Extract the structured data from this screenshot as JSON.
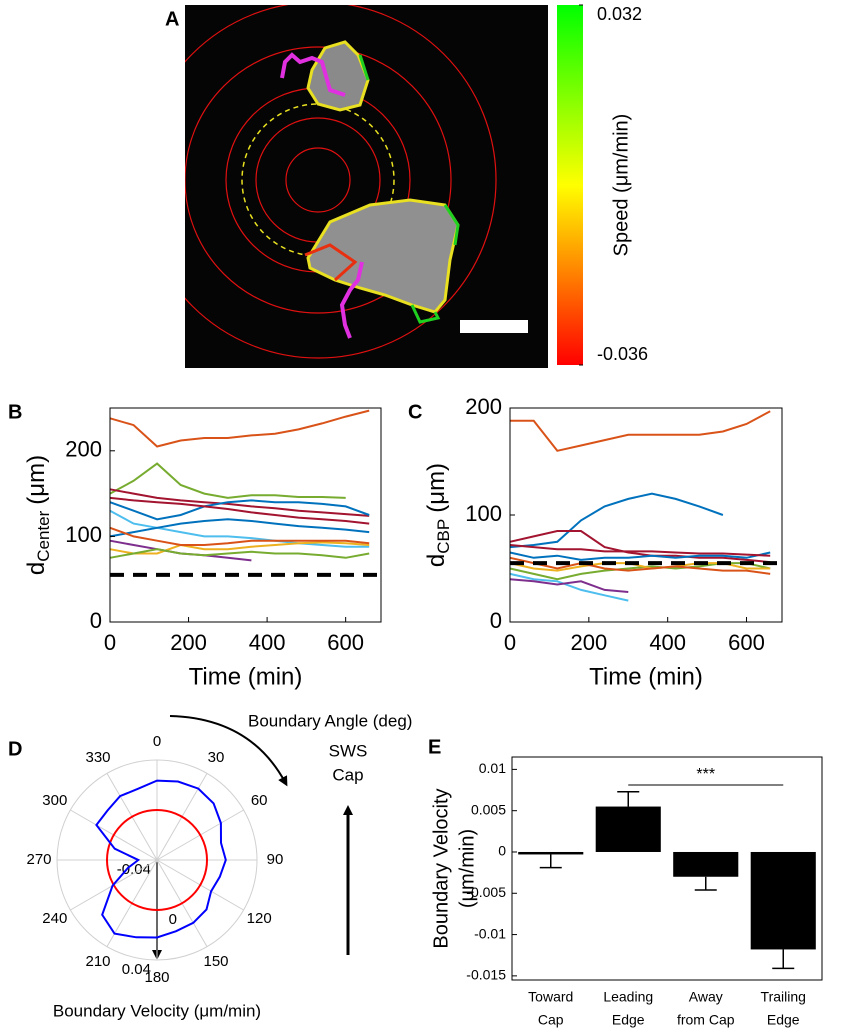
{
  "chart_data": [
    {
      "type": "image",
      "label": "A",
      "colorbar": {
        "label": "Speed (μm/min)",
        "lim": [
          -0.036,
          0.032
        ],
        "ticks": [
          -0.036,
          0.032
        ],
        "colors": [
          "#ff0000",
          "#ffff00",
          "#00ff00"
        ]
      }
    },
    {
      "type": "line",
      "label": "B",
      "xlabel": "Time (min)",
      "ylabel": "d",
      "ylabel_sub": "Center",
      "ylabel_unit": "(μm)",
      "x": [
        0,
        60,
        120,
        180,
        240,
        300,
        360,
        420,
        480,
        540,
        600,
        660
      ],
      "xlim": [
        0,
        690
      ],
      "xticks": [
        0,
        200,
        400,
        600
      ],
      "ylim": [
        0,
        250
      ],
      "yticks": [
        0,
        100,
        200
      ],
      "hline": 55,
      "series": [
        {
          "color": "#d95319",
          "values": [
            238,
            230,
            205,
            212,
            215,
            215,
            218,
            220,
            225,
            232,
            240,
            247
          ]
        },
        {
          "color": "#77ac30",
          "values": [
            150,
            165,
            185,
            160,
            150,
            145,
            148,
            148,
            146,
            146,
            145,
            null
          ]
        },
        {
          "color": "#a2142f",
          "values": [
            155,
            150,
            145,
            142,
            140,
            138,
            135,
            133,
            130,
            128,
            126,
            124
          ]
        },
        {
          "color": "#0072bd",
          "values": [
            140,
            130,
            120,
            125,
            135,
            140,
            142,
            140,
            140,
            138,
            135,
            125
          ]
        },
        {
          "color": "#4dbeee",
          "values": [
            130,
            115,
            110,
            105,
            100,
            100,
            98,
            95,
            92,
            90,
            88,
            88
          ]
        },
        {
          "color": "#7e2f8e",
          "values": [
            95,
            90,
            85,
            80,
            78,
            75,
            72,
            null,
            null,
            null,
            null,
            null
          ]
        },
        {
          "color": "#edb120",
          "values": [
            85,
            80,
            80,
            90,
            85,
            85,
            88,
            90,
            92,
            93,
            92,
            90
          ]
        },
        {
          "color": "#0072bd",
          "values": [
            100,
            105,
            110,
            115,
            118,
            120,
            118,
            115,
            112,
            110,
            108,
            105
          ]
        },
        {
          "color": "#d95319",
          "values": [
            110,
            100,
            95,
            90,
            90,
            92,
            95,
            95,
            95,
            95,
            95,
            92
          ]
        },
        {
          "color": "#77ac30",
          "values": [
            75,
            80,
            85,
            80,
            78,
            80,
            82,
            80,
            80,
            78,
            75,
            80
          ]
        },
        {
          "color": "#a2142f",
          "values": [
            145,
            142,
            140,
            138,
            135,
            132,
            128,
            125,
            122,
            120,
            118,
            115
          ]
        }
      ]
    },
    {
      "type": "line",
      "label": "C",
      "xlabel": "Time (min)",
      "ylabel": "d",
      "ylabel_sub": "CBP",
      "ylabel_unit": "(μm)",
      "x": [
        0,
        60,
        120,
        180,
        240,
        300,
        360,
        420,
        480,
        540,
        600,
        660
      ],
      "xlim": [
        0,
        690
      ],
      "xticks": [
        0,
        200,
        400,
        600
      ],
      "ylim": [
        0,
        200
      ],
      "yticks": [
        0,
        100,
        200
      ],
      "hline": 55,
      "series": [
        {
          "color": "#d95319",
          "values": [
            188,
            188,
            160,
            165,
            170,
            175,
            175,
            175,
            175,
            178,
            185,
            197
          ]
        },
        {
          "color": "#0072bd",
          "values": [
            70,
            72,
            75,
            95,
            108,
            115,
            120,
            115,
            108,
            100,
            null,
            null
          ]
        },
        {
          "color": "#a2142f",
          "values": [
            75,
            80,
            85,
            85,
            70,
            65,
            62,
            62,
            60,
            60,
            58,
            56
          ]
        },
        {
          "color": "#4dbeee",
          "values": [
            45,
            40,
            38,
            30,
            25,
            20,
            null,
            null,
            null,
            null,
            null,
            null
          ]
        },
        {
          "color": "#77ac30",
          "values": [
            50,
            45,
            40,
            45,
            48,
            50,
            52,
            50,
            52,
            55,
            55,
            50
          ]
        },
        {
          "color": "#edb120",
          "values": [
            55,
            50,
            48,
            52,
            55,
            55,
            50,
            52,
            55,
            55,
            50,
            50
          ]
        },
        {
          "color": "#7e2f8e",
          "values": [
            40,
            38,
            35,
            38,
            30,
            28,
            null,
            null,
            null,
            null,
            null,
            null
          ]
        },
        {
          "color": "#0072bd",
          "values": [
            65,
            60,
            62,
            58,
            60,
            60,
            62,
            60,
            62,
            62,
            60,
            65
          ]
        },
        {
          "color": "#d95319",
          "values": [
            60,
            55,
            50,
            55,
            50,
            48,
            50,
            52,
            50,
            48,
            48,
            45
          ]
        },
        {
          "color": "#a2142f",
          "values": [
            72,
            70,
            68,
            68,
            66,
            66,
            66,
            65,
            64,
            64,
            63,
            62
          ]
        }
      ]
    },
    {
      "type": "polar",
      "label": "D",
      "xlabel": "Boundary Angle (deg)",
      "ylabel": "Boundary Velocity (μm/min)",
      "annotation": [
        "SWS",
        "Cap"
      ],
      "theta": [
        0,
        15,
        30,
        45,
        60,
        75,
        90,
        105,
        120,
        135,
        150,
        165,
        180,
        195,
        210,
        225,
        240,
        255,
        270,
        285,
        300,
        315,
        330,
        345
      ],
      "values": [
        0.0235,
        0.025,
        0.026,
        0.024,
        0.019,
        0.013,
        0.015,
        0.012,
        0.01,
        0.016,
        0.018,
        0.019,
        0.022,
        0.024,
        0.028,
        0.022,
        0.001,
        -0.016,
        -0.025,
        -0.005,
        0.016,
        0.016,
        0.019,
        0.019
      ],
      "color": "#0000ff",
      "thetaticks": [
        0,
        30,
        60,
        90,
        120,
        150,
        180,
        210,
        240,
        270,
        300,
        330
      ],
      "rlim": [
        -0.04,
        0.04
      ],
      "rticks": [
        -0.04,
        0,
        0.04
      ],
      "ref_circle": 0,
      "ref_color": "#ff0000"
    },
    {
      "type": "bar",
      "label": "E",
      "ylabel": [
        "Boundary Velocity",
        "(μm/min)"
      ],
      "categories": [
        [
          "Toward",
          "Cap"
        ],
        [
          "Leading",
          "Edge"
        ],
        [
          "Away",
          "from Cap"
        ],
        [
          "Trailing",
          "Edge"
        ]
      ],
      "values": [
        -0.0003,
        0.0055,
        -0.003,
        -0.0118
      ],
      "errors": [
        0.0016,
        0.0018,
        0.0016,
        0.0023
      ],
      "color": "#000000",
      "ylim": [
        -0.0155,
        0.0115
      ],
      "yticks": [
        -0.015,
        -0.01,
        -0.005,
        0,
        0.005,
        0.01
      ],
      "annotation": "***"
    }
  ]
}
